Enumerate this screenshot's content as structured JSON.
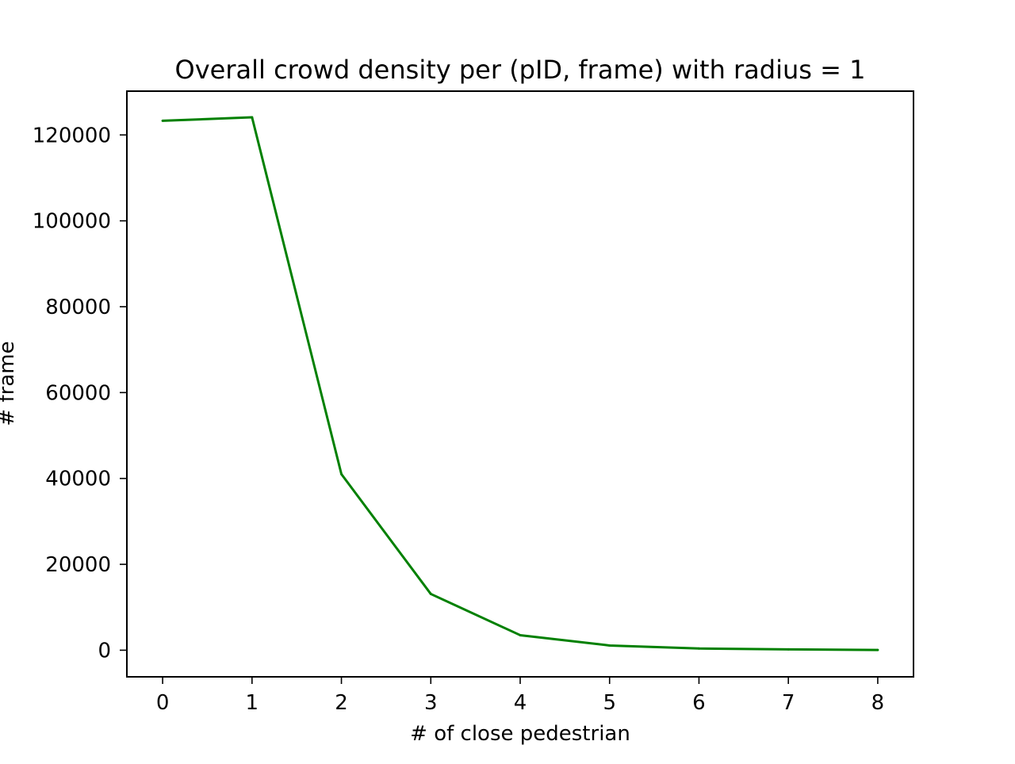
{
  "chart_data": {
    "type": "line",
    "title": "Overall crowd density per (pID, frame) with radius = 1",
    "xlabel": "# of close pedestrian",
    "ylabel": "# frame",
    "x": [
      0,
      1,
      2,
      3,
      4,
      5,
      6,
      7,
      8
    ],
    "series": [
      {
        "values": [
          123300,
          124100,
          41000,
          13100,
          3500,
          1100,
          400,
          200,
          50
        ],
        "color": "#008000"
      }
    ],
    "xlim": [
      -0.4,
      8.4
    ],
    "ylim": [
      -6200,
      130200
    ],
    "xticks": [
      0,
      1,
      2,
      3,
      4,
      5,
      6,
      7,
      8
    ],
    "xtick_labels": [
      "0",
      "1",
      "2",
      "3",
      "4",
      "5",
      "6",
      "7",
      "8"
    ],
    "yticks": [
      0,
      20000,
      40000,
      60000,
      80000,
      100000,
      120000
    ],
    "ytick_labels": [
      "0",
      "20000",
      "40000",
      "60000",
      "80000",
      "100000",
      "120000"
    ],
    "grid": false,
    "legend": "none"
  }
}
